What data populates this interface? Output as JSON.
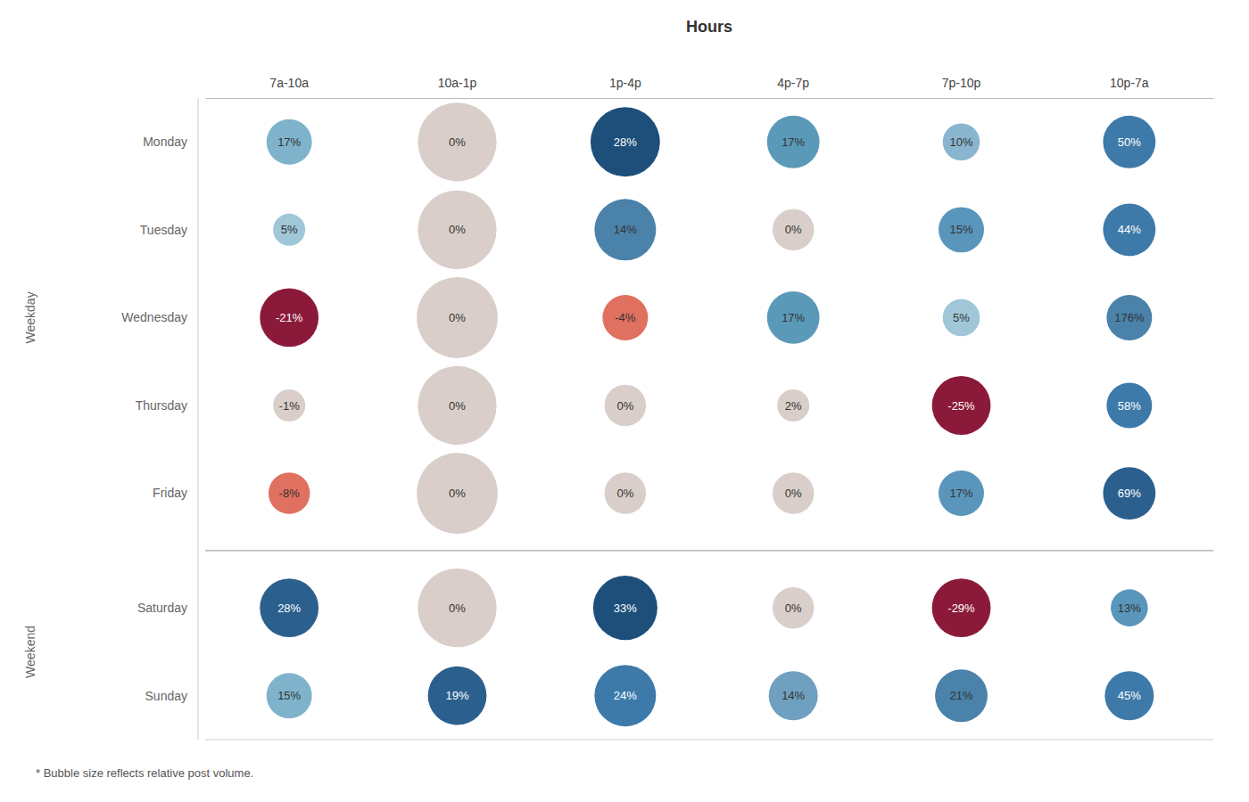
{
  "chart_data": {
    "type": "bubble_grid",
    "title": "Hours",
    "categories": [
      "7a-10a",
      "10a-1p",
      "1p-4p",
      "4p-7p",
      "7p-10p",
      "10p-7a"
    ],
    "data_labels": true,
    "grid": false,
    "annotations": [
      "* Bubble size reflects relative post volume."
    ],
    "series": [
      {
        "name": "Monday",
        "group": "Weekday",
        "values": [
          17,
          0,
          28,
          17,
          10,
          50
        ],
        "value_labels": [
          "17%",
          "0%",
          "28%",
          "17%",
          "10%",
          "50%"
        ],
        "sizes": [
          300,
          900,
          700,
          400,
          200,
          400
        ],
        "colors": [
          "#7fb3cc",
          "#d9cec9",
          "#1e4f7a",
          "#5a9ab8",
          "#8ab5cf",
          "#3d7aaa"
        ]
      },
      {
        "name": "Tuesday",
        "group": "Weekday",
        "values": [
          5,
          0,
          14,
          0,
          15,
          44
        ],
        "value_labels": [
          "5%",
          "0%",
          "14%",
          "0%",
          "15%",
          "44%"
        ],
        "sizes": [
          150,
          900,
          550,
          250,
          300,
          400
        ],
        "colors": [
          "#9fc7d8",
          "#d9cec9",
          "#4a82aa",
          "#d9cec9",
          "#5a95bb",
          "#3d7aaa"
        ]
      },
      {
        "name": "Wednesday",
        "group": "Weekday",
        "values": [
          -21,
          0,
          -4,
          17,
          5,
          176
        ],
        "value_labels": [
          "-21%",
          "0%",
          "-4%",
          "17%",
          "5%",
          "176%"
        ],
        "sizes": [
          500,
          950,
          300,
          400,
          200,
          300
        ],
        "colors": [
          "#8b1a3a",
          "#d9cec9",
          "#e07060",
          "#5a9ab8",
          "#9fc7d8",
          "#4a82aa"
        ]
      },
      {
        "name": "Thursday",
        "group": "Weekday",
        "values": [
          -1,
          0,
          0,
          2,
          -25,
          58
        ],
        "value_labels": [
          "-1%",
          "0%",
          "0%",
          "2%",
          "-25%",
          "58%"
        ],
        "sizes": [
          150,
          900,
          250,
          150,
          500,
          300
        ],
        "colors": [
          "#d9cec9",
          "#d9cec9",
          "#d9cec9",
          "#d9cec9",
          "#8b1a3a",
          "#3d7aaa"
        ]
      },
      {
        "name": "Friday",
        "group": "Weekday",
        "values": [
          -8,
          0,
          0,
          0,
          17,
          69
        ],
        "value_labels": [
          "-8%",
          "0%",
          "0%",
          "0%",
          "17%",
          "69%"
        ],
        "sizes": [
          250,
          950,
          250,
          250,
          300,
          400
        ],
        "colors": [
          "#e07060",
          "#d9cec9",
          "#d9cec9",
          "#d9cec9",
          "#5a95bb",
          "#2b5f8e"
        ]
      },
      {
        "name": "Saturday",
        "group": "Weekend",
        "values": [
          28,
          0,
          33,
          0,
          -29,
          13
        ],
        "value_labels": [
          "28%",
          "0%",
          "33%",
          "0%",
          "-29%",
          "13%"
        ],
        "sizes": [
          500,
          900,
          600,
          250,
          500,
          200
        ],
        "colors": [
          "#2b5f8e",
          "#d9cec9",
          "#1e4f7a",
          "#d9cec9",
          "#8b1a3a",
          "#5a95bb"
        ]
      },
      {
        "name": "Sunday",
        "group": "Weekend",
        "values": [
          15,
          19,
          24,
          14,
          21,
          45
        ],
        "value_labels": [
          "15%",
          "19%",
          "24%",
          "14%",
          "21%",
          "45%"
        ],
        "sizes": [
          300,
          500,
          550,
          350,
          400,
          350
        ],
        "colors": [
          "#7fb3cc",
          "#2b5f8e",
          "#3d7aaa",
          "#6fa0c0",
          "#4a82aa",
          "#3d7aaa"
        ]
      }
    ]
  }
}
